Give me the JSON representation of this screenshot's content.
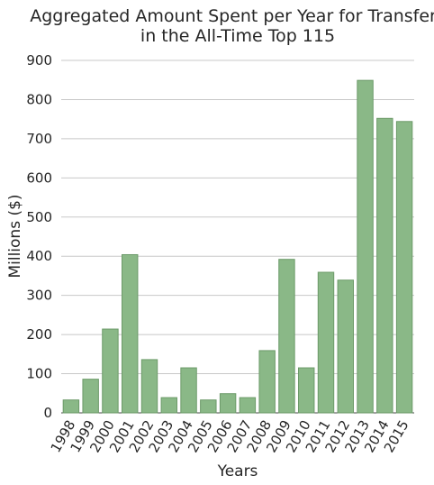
{
  "chart_data": {
    "type": "bar",
    "title_lines": [
      "Aggregated Amount Spent per Year for Transfers",
      "in the All-Time Top 115"
    ],
    "xlabel": "Years",
    "ylabel": "Millions ($)",
    "ylim": [
      0,
      900
    ],
    "yticks": [
      0,
      100,
      200,
      300,
      400,
      500,
      600,
      700,
      800,
      900
    ],
    "grid": true,
    "bar_color": "#8ab887",
    "categories": [
      "1998",
      "1999",
      "2000",
      "2001",
      "2002",
      "2003",
      "2004",
      "2005",
      "2006",
      "2007",
      "2008",
      "2009",
      "2010",
      "2011",
      "2012",
      "2013",
      "2014",
      "2015"
    ],
    "values": [
      33,
      86,
      214,
      404,
      136,
      39,
      115,
      33,
      49,
      39,
      159,
      392,
      115,
      359,
      339,
      849,
      752,
      744
    ]
  }
}
